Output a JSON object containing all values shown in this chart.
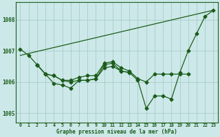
{
  "title": "Graphe pression niveau de la mer (hPa)",
  "bg_color": "#cce8e8",
  "grid_color": "#aacccc",
  "line_color": "#1a5c1a",
  "xlim": [
    -0.5,
    23.5
  ],
  "ylim": [
    1004.7,
    1008.55
  ],
  "yticks": [
    1005,
    1006,
    1007,
    1008
  ],
  "xticks": [
    0,
    1,
    2,
    3,
    4,
    5,
    6,
    7,
    8,
    9,
    10,
    11,
    12,
    13,
    14,
    15,
    16,
    17,
    18,
    19,
    20,
    21,
    22,
    23
  ],
  "diag_line": {
    "x": [
      0,
      23
    ],
    "y": [
      1006.85,
      1008.3
    ]
  },
  "series1_x": [
    0,
    1,
    2,
    3,
    4,
    5,
    6,
    7,
    8,
    9,
    10,
    11,
    12,
    13,
    14,
    15,
    16,
    17,
    18,
    19,
    20,
    21,
    22,
    23
  ],
  "series1_y": [
    1007.05,
    1006.85,
    1006.55,
    1006.25,
    1005.95,
    1005.9,
    1005.8,
    1006.05,
    1006.05,
    1006.1,
    1006.55,
    1006.6,
    1006.35,
    1006.3,
    1006.05,
    1005.15,
    1005.55,
    1005.55,
    1005.45,
    1006.3,
    1007.0,
    1007.55,
    1008.1,
    1008.3
  ],
  "series2_x": [
    2,
    3,
    4,
    5,
    6,
    7,
    8,
    9,
    10,
    11,
    12,
    13,
    14,
    15,
    16,
    17,
    18,
    19,
    20
  ],
  "series2_y": [
    1006.55,
    1006.25,
    1006.2,
    1006.05,
    1006.05,
    1006.15,
    1006.2,
    1006.2,
    1006.6,
    1006.65,
    1006.45,
    1006.35,
    1006.1,
    1006.0,
    1006.25,
    1006.25,
    1006.25,
    1006.25,
    1006.25
  ],
  "series3_x": [
    2,
    3,
    4,
    5,
    6,
    7,
    8,
    9,
    10,
    11,
    12,
    13
  ],
  "series3_y": [
    1006.55,
    1006.25,
    1006.2,
    1006.05,
    1006.0,
    1006.05,
    1006.05,
    1006.1,
    1006.45,
    1006.5,
    1006.35,
    1006.3
  ]
}
